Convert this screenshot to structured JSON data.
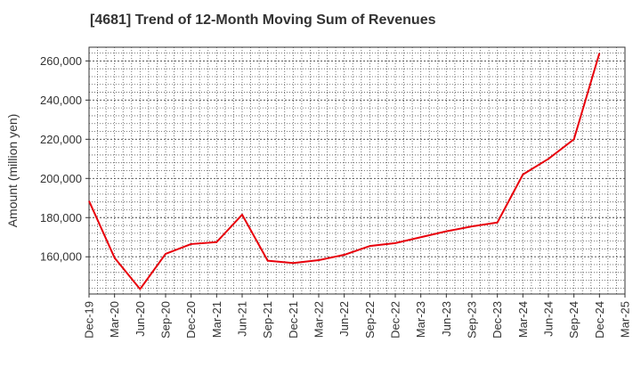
{
  "chart_data": {
    "type": "line",
    "title": "[4681]  Trend of 12-Month Moving Sum of Revenues",
    "xlabel": "",
    "ylabel": "Amount (million yen)",
    "x": [
      "Dec-19",
      "Mar-20",
      "Jun-20",
      "Sep-20",
      "Dec-20",
      "Mar-21",
      "Jun-21",
      "Sep-21",
      "Dec-21",
      "Mar-22",
      "Jun-22",
      "Sep-22",
      "Dec-22",
      "Mar-23",
      "Jun-23",
      "Sep-23",
      "Dec-23",
      "Mar-24",
      "Jun-24",
      "Sep-24",
      "Dec-24",
      "Mar-25"
    ],
    "x_ticks": [
      "Dec-19",
      "Mar-20",
      "Jun-20",
      "Sep-20",
      "Dec-20",
      "Mar-21",
      "Jun-21",
      "Sep-21",
      "Dec-21",
      "Mar-22",
      "Jun-22",
      "Sep-22",
      "Dec-22",
      "Mar-23",
      "Jun-23",
      "Sep-23",
      "Dec-23",
      "Mar-24",
      "Jun-24",
      "Sep-24",
      "Dec-24",
      "Mar-25"
    ],
    "y_ticks": [
      "160,000",
      "180,000",
      "200,000",
      "220,000",
      "240,000",
      "260,000"
    ],
    "y_tick_values": [
      160000,
      180000,
      200000,
      220000,
      240000,
      260000
    ],
    "ylim": [
      141000,
      267000
    ],
    "grid": true,
    "legend": "none",
    "series": [
      {
        "color": "#e8000b",
        "values": [
          188500,
          159500,
          143500,
          161500,
          166500,
          167500,
          181500,
          158000,
          156800,
          158300,
          161000,
          165500,
          167000,
          170000,
          173000,
          175500,
          177500,
          202000,
          210000,
          220000,
          264000,
          null
        ]
      }
    ]
  }
}
